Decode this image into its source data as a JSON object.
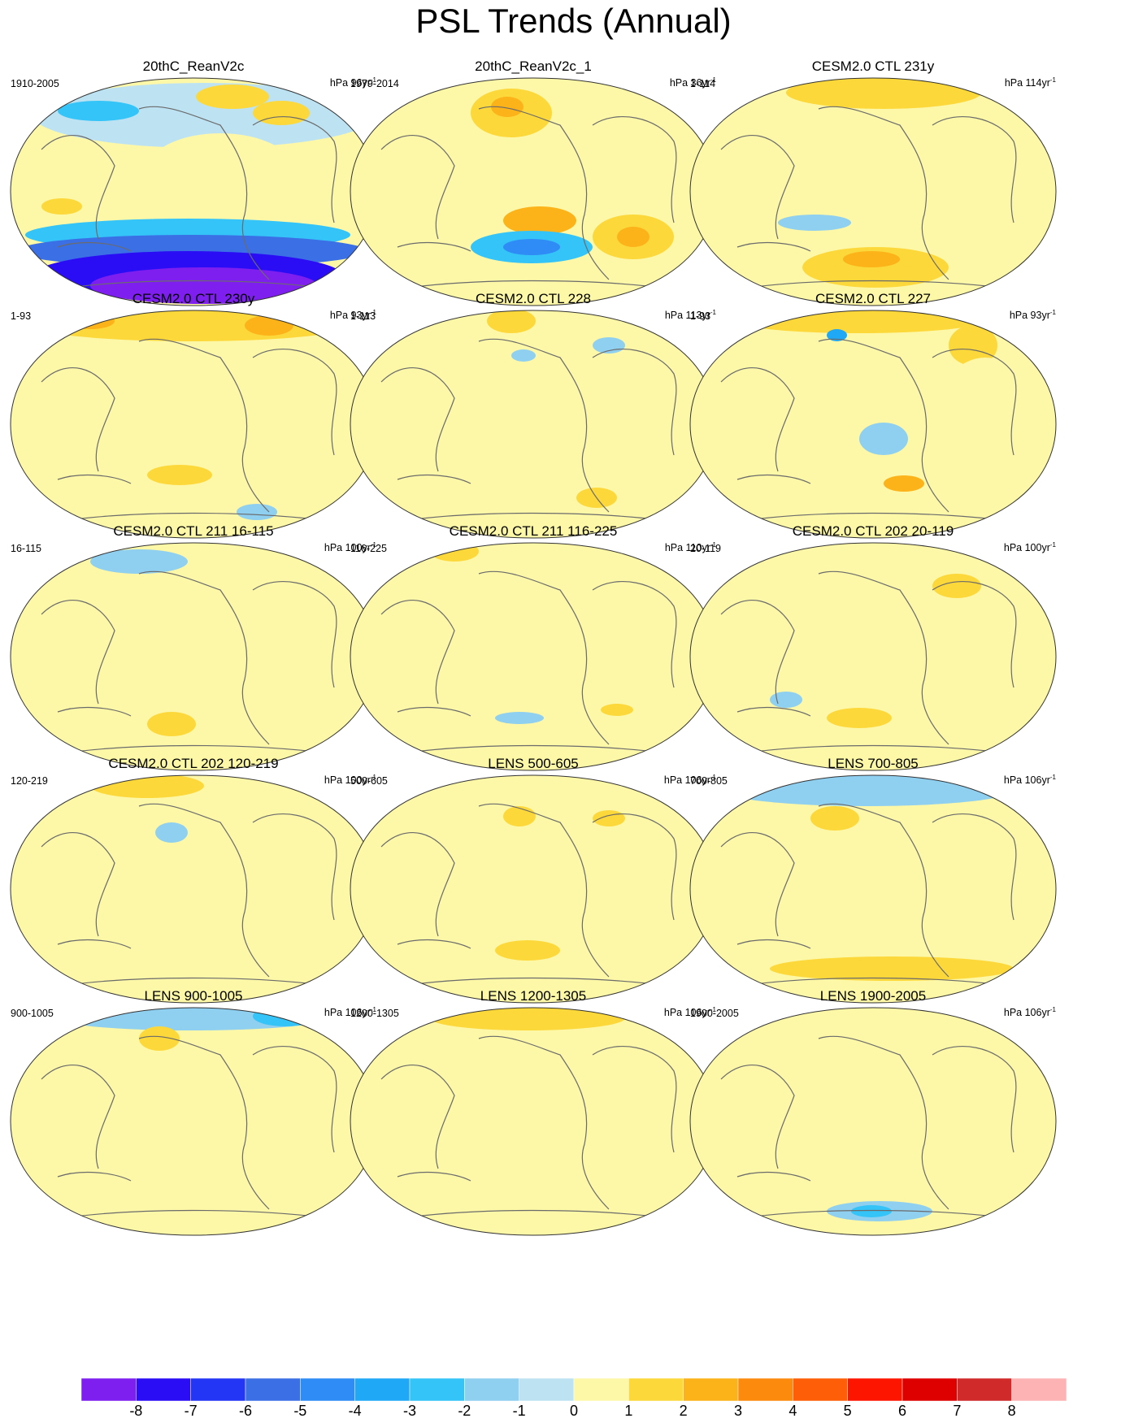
{
  "title": "PSL Trends (Annual)",
  "panels": [
    {
      "title": "20thC_ReanV2c",
      "left": "1910-2005",
      "unit": "hPa 96yr",
      "sup": "-1"
    },
    {
      "title": "20thC_ReanV2c_1",
      "left": "1979-2014",
      "unit": "hPa 36yr",
      "sup": "-1"
    },
    {
      "title": "CESM2.0 CTL 231y",
      "left": "1-114",
      "unit": "hPa 114yr",
      "sup": "-1"
    },
    {
      "title": "CESM2.0 CTL 230y",
      "left": "1-93",
      "unit": "hPa 93yr",
      "sup": "-1"
    },
    {
      "title": "CESM2.0 CTL 228",
      "left": "1-113",
      "unit": "hPa 113yr",
      "sup": "-1"
    },
    {
      "title": "CESM2.0 CTL 227",
      "left": "1-93",
      "unit": "hPa 93yr",
      "sup": "-1"
    },
    {
      "title": "CESM2.0 CTL 211 16-115",
      "left": "16-115",
      "unit": "hPa 100yr",
      "sup": "-1"
    },
    {
      "title": "CESM2.0 CTL 211 116-225",
      "left": "116-225",
      "unit": "hPa 110yr",
      "sup": "-1"
    },
    {
      "title": "CESM2.0 CTL 202 20-119",
      "left": "20-119",
      "unit": "hPa 100yr",
      "sup": "-1"
    },
    {
      "title": "CESM2.0 CTL 202 120-219",
      "left": "120-219",
      "unit": "hPa 100yr",
      "sup": "-1"
    },
    {
      "title": "LENS 500-605",
      "left": "500-605",
      "unit": "hPa 106yr",
      "sup": "-1"
    },
    {
      "title": "LENS 700-805",
      "left": "700-805",
      "unit": "hPa 106yr",
      "sup": "-1"
    },
    {
      "title": "LENS 900-1005",
      "left": "900-1005",
      "unit": "hPa 106yr",
      "sup": "-1"
    },
    {
      "title": "LENS 1200-1305",
      "left": "1200-1305",
      "unit": "hPa 106yr",
      "sup": "-1"
    },
    {
      "title": "LENS 1900-2005",
      "left": "1900-2005",
      "unit": "hPa 106yr",
      "sup": "-1"
    }
  ],
  "colorbar": {
    "colors": [
      "#7f1fef",
      "#2b0df5",
      "#2436f5",
      "#3a6fe6",
      "#2f8bf5",
      "#1fa8f5",
      "#35c4f7",
      "#8fcff0",
      "#bde3f3",
      "#fdf7a8",
      "#fcd83a",
      "#fcb219",
      "#fc8a0d",
      "#fd5e07",
      "#fd1500",
      "#de0000",
      "#d12a2a",
      "#fdb3b3"
    ],
    "labels": [
      "-8",
      "-7",
      "-6",
      "-5",
      "-4",
      "-3",
      "-2",
      "-1",
      "0",
      "1",
      "2",
      "3",
      "4",
      "5",
      "6",
      "7",
      "8"
    ]
  },
  "palette": {
    "land_outline": "#6b6b6b",
    "base_negative": "#bde3f3",
    "base_positive": "#fdf7a8"
  }
}
